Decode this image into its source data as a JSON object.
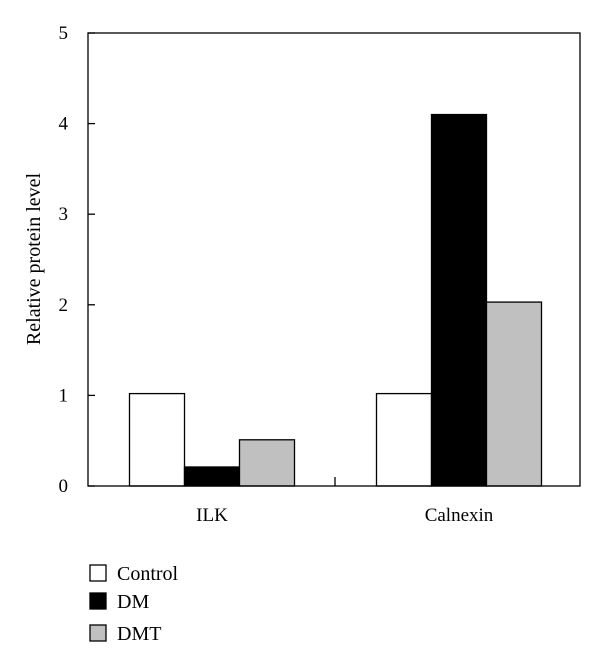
{
  "chart_data": {
    "type": "bar",
    "categories": [
      "ILK",
      "Calnexin"
    ],
    "series": [
      {
        "name": "Control",
        "values": [
          1.02,
          1.02
        ],
        "color": "#ffffff"
      },
      {
        "name": "DM",
        "values": [
          0.21,
          4.1
        ],
        "color": "#000000"
      },
      {
        "name": "DMT",
        "values": [
          0.51,
          2.03
        ],
        "color": "#c0c0c0"
      }
    ],
    "title": "",
    "xlabel": "",
    "ylabel": "Relative protein level",
    "ylim": [
      0,
      5
    ],
    "yticks": [
      0,
      1,
      2,
      3,
      4,
      5
    ],
    "grid": false,
    "legend_position": "bottom-left"
  }
}
